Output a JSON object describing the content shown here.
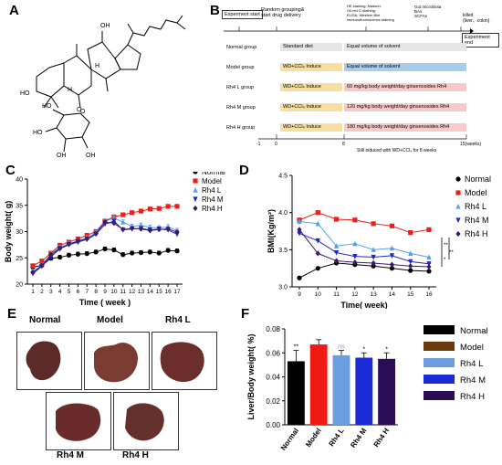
{
  "panels": {
    "A": "A",
    "B": "B",
    "C": "C",
    "D": "D",
    "E": "E",
    "F": "F"
  },
  "panel_b": {
    "experiment_start": "Experment start",
    "random_grouping": "Random grouping&\nstart drug delivery",
    "hr_staining": "HE staining; Masson;\nOil red O staining;\nELISA; Western Blot\nimmunofluorescence staining",
    "gut_microbiota": "Gut microbiota\nBAs\nSCFAs",
    "killed": "killed\n(liver、colon)",
    "experiment_end": "Experiment end",
    "groups": [
      {
        "name": "Normal group",
        "first": "Standard diet",
        "second": "Equal volume of  solvent",
        "first_color": "#e6e6e6",
        "second_color": "#e6e6e6"
      },
      {
        "name": "Model group",
        "first": "WD+CCl₄ Induce",
        "second": "Equal volume of solvent",
        "first_color": "#f7dfa2",
        "second_color": "#a9cce9"
      },
      {
        "name": "Rh4 L group",
        "first": "WD+CCl₄ Induce",
        "second": "60 mg/kg body weight/day ginsenosides Rh4",
        "first_color": "#f7dfa2",
        "second_color": "#f7c9c9"
      },
      {
        "name": "Rh4 M group",
        "first": "WD+CCl₄ Induce",
        "second": "120 mg/kg body weight/day ginsenosides Rh4",
        "first_color": "#f7dfa2",
        "second_color": "#f7c9c9"
      },
      {
        "name": "Rh4 H group",
        "first": "WD+CCl₄ Induce",
        "second": "180 mg/kg body weight/day ginsenosides Rh4",
        "first_color": "#f7dfa2",
        "second_color": "#f7c9c9"
      }
    ],
    "ticks": [
      "-1",
      "0",
      "8",
      "15(weeks)"
    ],
    "note": "Still induced with WD+CCl₄ for 8 weeks"
  },
  "panel_e": {
    "labels": [
      "Normal",
      "Model",
      "Rh4 L",
      "Rh4 M",
      "Rh4 H"
    ]
  },
  "chart_data": [
    {
      "id": "C",
      "type": "line",
      "xlabel": "Time ( week )",
      "ylabel": "Body weight( g)",
      "x": [
        1,
        2,
        3,
        4,
        5,
        6,
        7,
        8,
        9,
        10,
        11,
        12,
        13,
        14,
        15,
        16,
        17
      ],
      "ylim": [
        20,
        40
      ],
      "yticks": [
        20,
        25,
        30,
        35,
        40
      ],
      "legend_position": "top-right",
      "series": [
        {
          "name": "Normal",
          "color": "#000000",
          "marker": "circle",
          "values": [
            23.2,
            23.6,
            24.9,
            25.1,
            25.5,
            25.7,
            25.8,
            26.1,
            26.7,
            26.5,
            25.6,
            25.9,
            26.0,
            26.1,
            25.9,
            26.4,
            26.3
          ]
        },
        {
          "name": "Model",
          "color": "#e8211b",
          "marker": "square",
          "values": [
            23.5,
            24.4,
            25.9,
            27.4,
            28.0,
            28.6,
            29.3,
            30.0,
            32.0,
            32.8,
            33.2,
            33.6,
            33.9,
            34.3,
            34.4,
            34.8,
            34.8
          ]
        },
        {
          "name": "Rh4 L",
          "color": "#56a0e8",
          "marker": "triangle-up",
          "values": [
            22.4,
            23.6,
            25.7,
            27.0,
            27.7,
            28.2,
            28.8,
            29.8,
            31.9,
            32.6,
            31.8,
            31.0,
            31.2,
            30.8,
            30.7,
            30.9,
            30.2
          ]
        },
        {
          "name": "Rh4 M",
          "color": "#1f26c9",
          "marker": "triangle-down",
          "values": [
            22.0,
            23.4,
            25.2,
            26.7,
            27.5,
            28.0,
            28.5,
            29.5,
            31.4,
            32.0,
            30.3,
            30.5,
            30.6,
            30.3,
            30.5,
            30.3,
            29.5
          ]
        },
        {
          "name": "Rh4 H",
          "color": "#3d1a6b",
          "marker": "diamond",
          "values": [
            22.2,
            23.5,
            25.6,
            26.8,
            27.6,
            28.2,
            28.6,
            29.6,
            31.8,
            31.6,
            30.4,
            30.6,
            30.5,
            30.2,
            30.4,
            30.5,
            29.9
          ]
        }
      ]
    },
    {
      "id": "D",
      "type": "line",
      "xlabel": "Time( week)",
      "ylabel": "BMI(Kg/m²)",
      "x": [
        9,
        10,
        11,
        12,
        13,
        14,
        15,
        16
      ],
      "ylim": [
        3.0,
        4.5
      ],
      "yticks": [
        3.0,
        3.5,
        4.0,
        4.5
      ],
      "legend_position": "right",
      "annotations": [
        "**",
        "**",
        "*"
      ],
      "series": [
        {
          "name": "Normal",
          "color": "#000000",
          "marker": "circle",
          "values": [
            3.12,
            3.25,
            3.32,
            3.3,
            3.28,
            3.25,
            3.22,
            3.21
          ]
        },
        {
          "name": "Model",
          "color": "#e8211b",
          "marker": "square",
          "values": [
            3.9,
            4.0,
            3.91,
            3.9,
            3.85,
            3.82,
            3.73,
            3.77
          ]
        },
        {
          "name": "Rh4 L",
          "color": "#56a0e8",
          "marker": "triangle-up",
          "values": [
            3.88,
            3.85,
            3.55,
            3.58,
            3.5,
            3.52,
            3.45,
            3.4
          ]
        },
        {
          "name": "Rh4 M",
          "color": "#1f26c9",
          "marker": "triangle-down",
          "values": [
            3.72,
            3.62,
            3.46,
            3.41,
            3.4,
            3.42,
            3.34,
            3.31
          ]
        },
        {
          "name": "Rh4 H",
          "color": "#3d1a6b",
          "marker": "diamond",
          "values": [
            3.77,
            3.45,
            3.35,
            3.33,
            3.32,
            3.3,
            3.28,
            3.27
          ]
        }
      ]
    },
    {
      "id": "F",
      "type": "bar",
      "ylabel": "Liver/Body weight( %)",
      "categories": [
        "Normal",
        "Model",
        "Rh4 L",
        "Rh4 M",
        "Rh4 H"
      ],
      "values": [
        0.053,
        0.067,
        0.058,
        0.056,
        0.055
      ],
      "errors": [
        0.009,
        0.004,
        0.004,
        0.004,
        0.005
      ],
      "colors": [
        "#000000",
        "#f01a14",
        "#6b9ee0",
        "#1a2bd6",
        "#2b0d55"
      ],
      "ylim": [
        0,
        0.08
      ],
      "yticks": [
        0.0,
        0.02,
        0.04,
        0.06,
        0.08
      ],
      "significance": [
        "**",
        "",
        "ns",
        "*",
        "*"
      ],
      "legend_position": "right",
      "legend": [
        "Normal",
        "Model",
        "Rh4 L",
        "Rh4 M",
        "Rh4 H"
      ],
      "legend_colors": [
        "#000000",
        "#6b3a0c",
        "#6b9ee0",
        "#1a2bd6",
        "#2b0d55"
      ]
    }
  ]
}
